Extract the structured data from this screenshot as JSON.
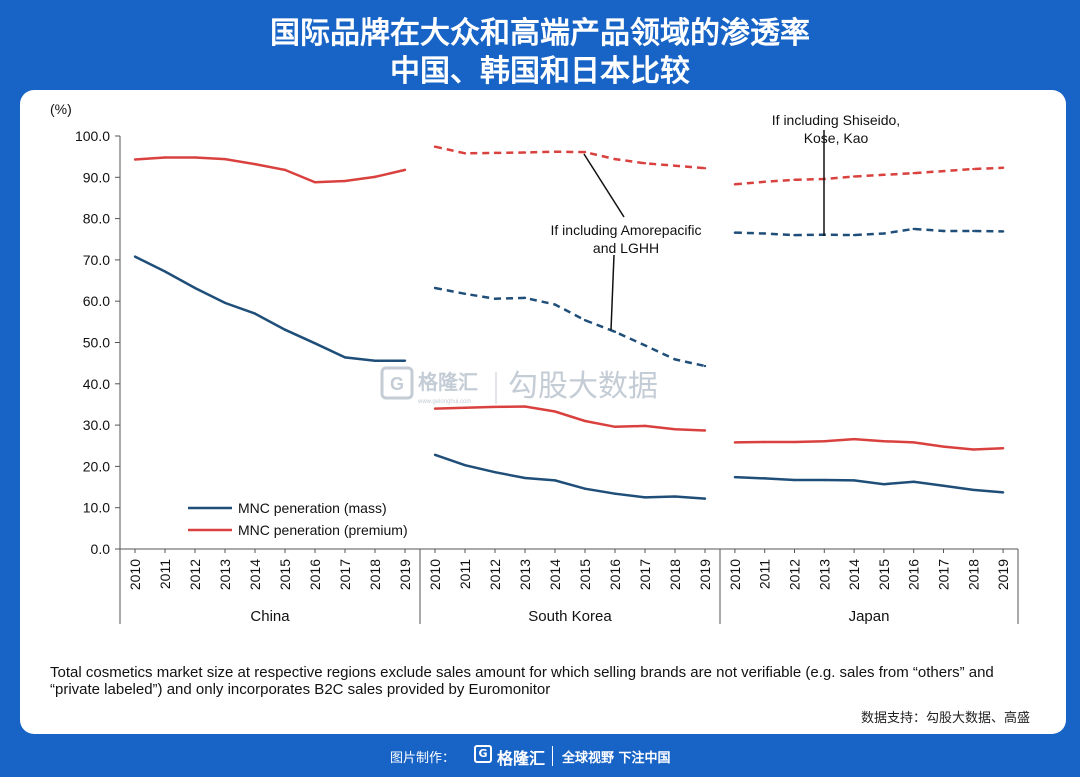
{
  "title_line1": "国际品牌在大众和高端产品领域的渗透率",
  "title_line2": "中国、韩国和日本比较",
  "watermark": {
    "logo_letter": "G",
    "brand": "格隆汇",
    "sub": "www.gelonghui.com",
    "text": "勾股大数据"
  },
  "note": "Total cosmetics market size at respective regions exclude sales amount for which selling brands are not verifiable (e.g. sales from “others” and “private labeled”) and only incorporates B2C sales provided by Euromonitor",
  "source": "数据支持：勾股大数据、高盛",
  "footer": {
    "label": "图片制作：",
    "logo_letter": "G",
    "brand": "格隆汇",
    "slogan": "全球视野 下注中国"
  },
  "colors": {
    "mass": "#1f4e79",
    "premium": "#d9413e",
    "title_bg": "#1763c6"
  },
  "chart_data": {
    "type": "line",
    "ylabel": "(%)",
    "ylim": [
      0,
      100
    ],
    "yticks": [
      "0.0",
      "10.0",
      "20.0",
      "30.0",
      "40.0",
      "50.0",
      "60.0",
      "70.0",
      "80.0",
      "90.0",
      "100.0"
    ],
    "years": [
      "2010",
      "2011",
      "2012",
      "2013",
      "2014",
      "2015",
      "2016",
      "2017",
      "2018",
      "2019"
    ],
    "panels": [
      {
        "name": "China",
        "mass": [
          70.8,
          67.2,
          63.2,
          59.6,
          57.0,
          53.1,
          49.8,
          46.4,
          45.6,
          45.6
        ],
        "premium": [
          94.3,
          94.8,
          94.8,
          94.4,
          93.2,
          91.8,
          88.8,
          89.1,
          90.1,
          91.8
        ]
      },
      {
        "name": "South Korea",
        "mass": [
          22.8,
          20.3,
          18.6,
          17.2,
          16.6,
          14.6,
          13.4,
          12.5,
          12.7,
          12.2
        ],
        "premium": [
          34.0,
          34.2,
          34.4,
          34.5,
          33.3,
          31.0,
          29.6,
          29.8,
          29.0,
          28.7
        ],
        "mass_dashed": [
          63.2,
          61.8,
          60.6,
          60.8,
          59.2,
          55.4,
          52.6,
          49.3,
          45.9,
          44.3
        ],
        "premium_dashed": [
          97.4,
          95.8,
          95.9,
          96.0,
          96.2,
          96.1,
          94.4,
          93.4,
          92.8,
          92.2
        ]
      },
      {
        "name": "Japan",
        "mass": [
          17.4,
          17.1,
          16.7,
          16.7,
          16.6,
          15.7,
          16.3,
          15.3,
          14.3,
          13.7
        ],
        "premium": [
          25.8,
          25.9,
          25.9,
          26.1,
          26.6,
          26.1,
          25.8,
          24.8,
          24.1,
          24.4
        ],
        "mass_dashed": [
          76.6,
          76.4,
          76.0,
          76.1,
          76.0,
          76.4,
          77.5,
          77.0,
          77.0,
          76.9
        ],
        "premium_dashed": [
          88.3,
          88.9,
          89.4,
          89.6,
          90.2,
          90.6,
          91.0,
          91.5,
          92.0,
          92.3
        ]
      }
    ],
    "legend": [
      {
        "key": "mass",
        "label": "MNC peneration (mass)"
      },
      {
        "key": "premium",
        "label": "MNC peneration (premium)"
      }
    ],
    "annotations": {
      "korea": [
        "If including Amorepacific",
        "and LGHH"
      ],
      "japan": [
        "If including Shiseido,",
        "Kose, Kao"
      ]
    }
  }
}
